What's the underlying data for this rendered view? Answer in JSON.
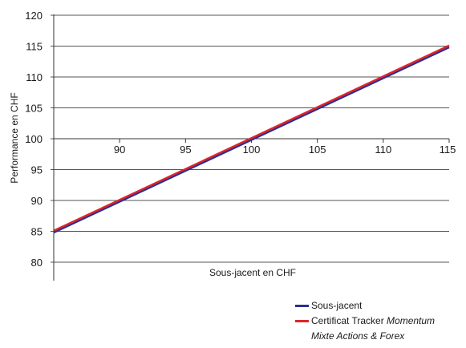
{
  "chart_data": {
    "type": "line",
    "xlabel": "Sous-jacent en CHF",
    "ylabel": "Performance en CHF",
    "xlim": [
      85,
      115
    ],
    "ylim": [
      80,
      120
    ],
    "xticks": [
      "90",
      "95",
      "100",
      "105",
      "110",
      "115"
    ],
    "yticks": [
      "80",
      "85",
      "90",
      "95",
      "100",
      "105",
      "110",
      "115",
      "120"
    ],
    "x_axis_crosses_y_at": 100,
    "grid": "horizontal",
    "legend_position": "bottom-right",
    "series": [
      {
        "name": "Sous-jacent",
        "color": "#2b2f8f",
        "x": [
          85,
          115
        ],
        "y": [
          84.8,
          114.8
        ]
      },
      {
        "name": "Certificat Tracker Momentum Mixte Actions & Forex",
        "color": "#e0242b",
        "x": [
          85,
          115
        ],
        "y": [
          85.1,
          115.1
        ]
      }
    ]
  },
  "legend": {
    "item1": "Sous-jacent",
    "item2_plain": "Certificat Tracker ",
    "item2_italic": "Momentum",
    "item2_line2": "Mixte Actions & Forex"
  }
}
